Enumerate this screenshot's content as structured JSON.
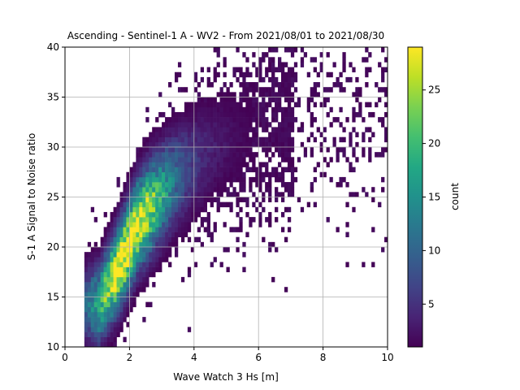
{
  "chart_data": {
    "type": "heatmap",
    "title": "Ascending - Sentinel-1 A - WV2 - From 2021/08/01 to 2021/08/30",
    "xlabel": "Wave Watch 3 Hs [m]",
    "ylabel": "S-1 A Signal to Noise ratio",
    "xlim": [
      0,
      10
    ],
    "ylim": [
      10,
      40
    ],
    "x_ticks": [
      0,
      2,
      4,
      6,
      8,
      10
    ],
    "y_ticks": [
      10,
      15,
      20,
      25,
      30,
      35,
      40
    ],
    "grid": true,
    "colorbar": {
      "label": "count",
      "range": [
        1,
        29
      ],
      "ticks": [
        5,
        10,
        15,
        20,
        25
      ],
      "colormap": "viridis"
    },
    "bin_size": {
      "x": 0.1,
      "y": 0.5
    },
    "density_ridge": [
      {
        "hs": 1.0,
        "snr": 14
      },
      {
        "hs": 1.5,
        "snr": 17
      },
      {
        "hs": 1.8,
        "snr": 19
      },
      {
        "hs": 2.2,
        "snr": 22
      },
      {
        "hs": 2.8,
        "snr": 24.5
      },
      {
        "hs": 3.5,
        "snr": 27
      },
      {
        "hs": 4.5,
        "snr": 29.5
      },
      {
        "hs": 6.0,
        "snr": 32
      },
      {
        "hs": 8.0,
        "snr": 34
      }
    ],
    "peak": {
      "hs": 1.8,
      "snr": 19.5,
      "count": 29
    }
  }
}
